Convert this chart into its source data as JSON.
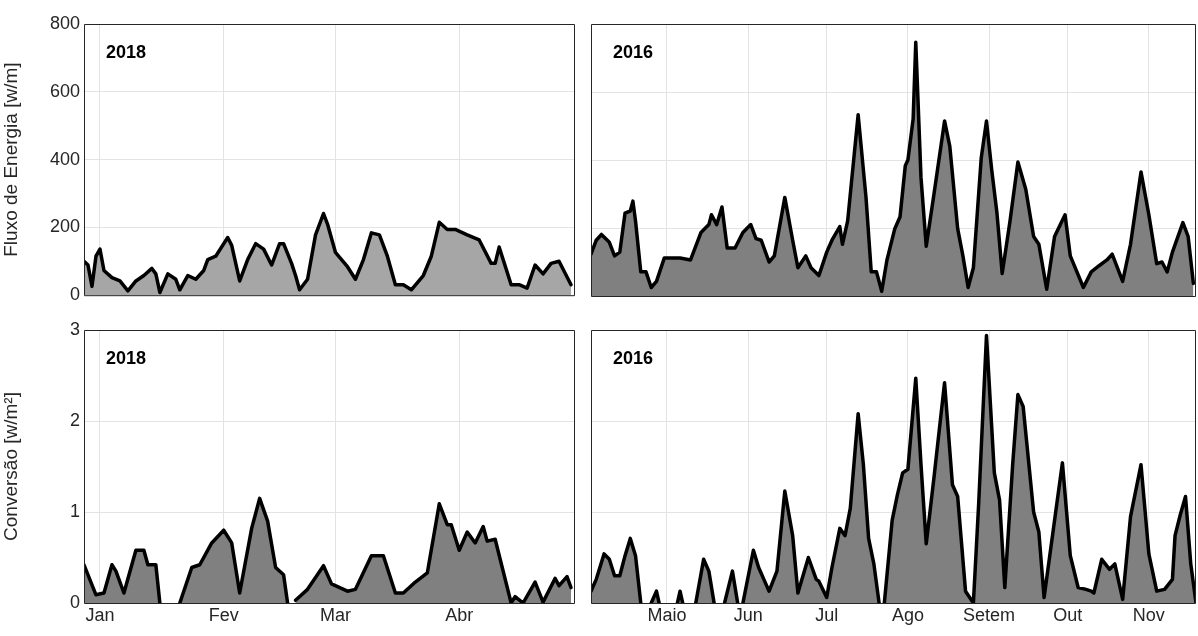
{
  "chart_data": [
    {
      "type": "area",
      "title": "2018",
      "ylabel": "Fluxo de Energia [w/m]",
      "grid": true,
      "tick_labels": "y",
      "xlim": [
        "2018-01-11",
        "2018-05-14"
      ],
      "xticks": [
        {
          "value": "2018-01-15",
          "label": null
        },
        {
          "value": "2018-02-15",
          "label": null
        },
        {
          "value": "2018-03-15",
          "label": null
        },
        {
          "value": "2018-04-15",
          "label": null
        }
      ],
      "ylim": [
        0,
        800
      ],
      "yticks": [
        0,
        200,
        400,
        600,
        800
      ],
      "series": [
        {
          "color": "#a6a6a6",
          "x": [
            "2018-01-11",
            "2018-01-12",
            "2018-01-13",
            "2018-01-14",
            "2018-01-15",
            "2018-01-16",
            "2018-01-18",
            "2018-01-20",
            "2018-01-22",
            "2018-01-24",
            "2018-01-26",
            "2018-01-28",
            "2018-01-29",
            "2018-01-30",
            "2018-02-01",
            "2018-02-03",
            "2018-02-04",
            "2018-02-06",
            "2018-02-08",
            "2018-02-10",
            "2018-02-11",
            "2018-02-13",
            "2018-02-16",
            "2018-02-17",
            "2018-02-19",
            "2018-02-21",
            "2018-02-23",
            "2018-02-25",
            "2018-02-27",
            "2018-03-01",
            "2018-03-02",
            "2018-03-04",
            "2018-03-05",
            "2018-03-06",
            "2018-03-08",
            "2018-03-10",
            "2018-03-12",
            "2018-03-13",
            "2018-03-15",
            "2018-03-18",
            "2018-03-20",
            "2018-03-22",
            "2018-03-24",
            "2018-03-26",
            "2018-03-28",
            "2018-03-30",
            "2018-04-01",
            "2018-04-03",
            "2018-04-06",
            "2018-04-08",
            "2018-04-10",
            "2018-04-12",
            "2018-04-14",
            "2018-04-17",
            "2018-04-20",
            "2018-04-23",
            "2018-04-24",
            "2018-04-25",
            "2018-04-28",
            "2018-04-30",
            "2018-05-02",
            "2018-05-04",
            "2018-05-06",
            "2018-05-08",
            "2018-05-10",
            "2018-05-13"
          ],
          "values": [
            100,
            89,
            26,
            115,
            136,
            73,
            52,
            42,
            13,
            42,
            58,
            79,
            63,
            8,
            63,
            47,
            16,
            58,
            47,
            73,
            105,
            115,
            170,
            147,
            42,
            105,
            152,
            136,
            89,
            152,
            152,
            94,
            58,
            16,
            47,
            178,
            241,
            210,
            126,
            84,
            47,
            105,
            184,
            178,
            115,
            31,
            31,
            16,
            58,
            115,
            215,
            194,
            194,
            178,
            163,
            94,
            94,
            142,
            31,
            31,
            21,
            89,
            63,
            94,
            100,
            31
          ]
        }
      ]
    },
    {
      "type": "area",
      "title": "2016",
      "grid": true,
      "tick_labels": false,
      "xlim": [
        "2016-04-16",
        "2016-12-03"
      ],
      "xticks": [
        {
          "value": "2016-05-15",
          "label": null
        },
        {
          "value": "2016-06-15",
          "label": null
        },
        {
          "value": "2016-07-15",
          "label": null
        },
        {
          "value": "2016-08-15",
          "label": null
        },
        {
          "value": "2016-09-15",
          "label": null
        },
        {
          "value": "2016-10-15",
          "label": null
        },
        {
          "value": "2016-11-15",
          "label": null
        }
      ],
      "ylim": [
        0,
        800
      ],
      "yticks": [
        0,
        200,
        400,
        600,
        800
      ],
      "series": [
        {
          "color": "#808080",
          "x": [
            "2016-04-16",
            "2016-04-18",
            "2016-04-20",
            "2016-04-23",
            "2016-04-25",
            "2016-04-27",
            "2016-04-29",
            "2016-05-01",
            "2016-05-02",
            "2016-05-03",
            "2016-05-05",
            "2016-05-07",
            "2016-05-09",
            "2016-05-11",
            "2016-05-14",
            "2016-05-17",
            "2016-05-20",
            "2016-05-24",
            "2016-05-28",
            "2016-05-31",
            "2016-06-01",
            "2016-06-03",
            "2016-06-05",
            "2016-06-07",
            "2016-06-10",
            "2016-06-13",
            "2016-06-16",
            "2016-06-18",
            "2016-06-20",
            "2016-06-23",
            "2016-06-25",
            "2016-06-29",
            "2016-07-02",
            "2016-07-04",
            "2016-07-07",
            "2016-07-09",
            "2016-07-12",
            "2016-07-15",
            "2016-07-17",
            "2016-07-20",
            "2016-07-21",
            "2016-07-23",
            "2016-07-27",
            "2016-07-30",
            "2016-08-01",
            "2016-08-03",
            "2016-08-05",
            "2016-08-07",
            "2016-08-10",
            "2016-08-12",
            "2016-08-14",
            "2016-08-15",
            "2016-08-17",
            "2016-08-18",
            "2016-08-20",
            "2016-08-22",
            "2016-08-25",
            "2016-08-29",
            "2016-08-31",
            "2016-09-03",
            "2016-09-05",
            "2016-09-07",
            "2016-09-09",
            "2016-09-12",
            "2016-09-14",
            "2016-09-16",
            "2016-09-18",
            "2016-09-20",
            "2016-09-23",
            "2016-09-26",
            "2016-09-29",
            "2016-10-02",
            "2016-10-04",
            "2016-10-07",
            "2016-10-10",
            "2016-10-14",
            "2016-10-16",
            "2016-10-21",
            "2016-10-24",
            "2016-10-27",
            "2016-10-30",
            "2016-11-01",
            "2016-11-05",
            "2016-11-08",
            "2016-11-12",
            "2016-11-15",
            "2016-11-18",
            "2016-11-20",
            "2016-11-22",
            "2016-11-24",
            "2016-11-28",
            "2016-11-30",
            "2016-12-02"
          ],
          "values": [
            123,
            164,
            181,
            158,
            118,
            129,
            244,
            250,
            279,
            221,
            71,
            71,
            25,
            43,
            112,
            112,
            112,
            106,
            187,
            210,
            239,
            210,
            262,
            141,
            141,
            187,
            210,
            169,
            164,
            100,
            118,
            290,
            164,
            83,
            118,
            83,
            60,
            129,
            164,
            204,
            152,
            221,
            533,
            290,
            71,
            71,
            14,
            106,
            198,
            233,
            383,
            400,
            521,
            746,
            348,
            146,
            302,
            515,
            440,
            198,
            118,
            25,
            83,
            406,
            515,
            371,
            244,
            66,
            221,
            394,
            314,
            175,
            152,
            20,
            175,
            239,
            118,
            25,
            71,
            89,
            106,
            123,
            43,
            152,
            365,
            239,
            95,
            100,
            71,
            129,
            216,
            175,
            37
          ]
        }
      ]
    },
    {
      "type": "area",
      "title": "2018",
      "ylabel": "Conversão [w/m²]",
      "grid": true,
      "xlim": [
        "2018-01-11",
        "2018-05-14"
      ],
      "xticks": [
        {
          "value": "2018-01-15",
          "label": "Jan"
        },
        {
          "value": "2018-02-15",
          "label": "Fev"
        },
        {
          "value": "2018-03-15",
          "label": "Mar"
        },
        {
          "value": "2018-04-15",
          "label": "Abr"
        }
      ],
      "ylim": [
        0,
        3
      ],
      "yticks": [
        0,
        1,
        2,
        3
      ],
      "series": [
        {
          "color": "#808080",
          "x": [
            "2018-01-11",
            "2018-01-14",
            "2018-01-16",
            "2018-01-18",
            "2018-01-19",
            "2018-01-21",
            "2018-01-24",
            "2018-01-26",
            "2018-01-27",
            "2018-01-29",
            "2018-01-30",
            "2018-02-01",
            "2018-02-04",
            "2018-02-07",
            "2018-02-09",
            "2018-02-12",
            "2018-02-15",
            "2018-02-17",
            "2018-02-19",
            "2018-02-22",
            "2018-02-24",
            "2018-02-26",
            "2018-02-28",
            "2018-03-02",
            "2018-03-03",
            "2018-03-04",
            "2018-03-05",
            "2018-03-08",
            "2018-03-12",
            "2018-03-14",
            "2018-03-18",
            "2018-03-20",
            "2018-03-24",
            "2018-03-27",
            "2018-03-30",
            "2018-04-01",
            "2018-04-04",
            "2018-04-07",
            "2018-04-10",
            "2018-04-12",
            "2018-04-13",
            "2018-04-15",
            "2018-04-17",
            "2018-04-19",
            "2018-04-21",
            "2018-04-22",
            "2018-04-24",
            "2018-04-28",
            "2018-04-29",
            "2018-05-01",
            "2018-05-04",
            "2018-05-06",
            "2018-05-09",
            "2018-05-10",
            "2018-05-12",
            "2018-05-13"
          ],
          "values": [
            0.42,
            0.09,
            0.11,
            0.42,
            0.35,
            0.11,
            0.58,
            0.58,
            0.42,
            0.42,
            0,
            null,
            0,
            0.39,
            0.42,
            0.66,
            0.8,
            0.66,
            0.11,
            0.82,
            1.15,
            0.9,
            0.39,
            0.31,
            0,
            null,
            0.03,
            0.15,
            0.41,
            0.21,
            0.13,
            0.15,
            0.52,
            0.52,
            0.11,
            0.11,
            0.23,
            0.33,
            1.09,
            0.86,
            0.86,
            0.58,
            0.78,
            0.66,
            0.84,
            0.68,
            0.7,
            0,
            0.07,
            0,
            0.23,
            0.01,
            0.27,
            0.19,
            0.29,
            0.17
          ]
        }
      ]
    },
    {
      "type": "area",
      "title": "2016",
      "grid": true,
      "tick_labels": "x",
      "xlim": [
        "2016-04-16",
        "2016-12-03"
      ],
      "xticks": [
        {
          "value": "2016-05-15",
          "label": "Maio"
        },
        {
          "value": "2016-06-15",
          "label": "Jun"
        },
        {
          "value": "2016-07-15",
          "label": "Jul"
        },
        {
          "value": "2016-08-15",
          "label": "Ago"
        },
        {
          "value": "2016-09-15",
          "label": "Setem"
        },
        {
          "value": "2016-10-15",
          "label": "Out"
        },
        {
          "value": "2016-11-15",
          "label": "Nov"
        }
      ],
      "ylim": [
        0,
        3
      ],
      "yticks": [
        0,
        1,
        2,
        3
      ],
      "series": [
        {
          "color": "#808080",
          "x": [
            "2016-04-16",
            "2016-04-18",
            "2016-04-21",
            "2016-04-23",
            "2016-04-25",
            "2016-04-27",
            "2016-04-29",
            "2016-05-01",
            "2016-05-03",
            "2016-05-05",
            "2016-05-07",
            "2016-05-09",
            "2016-05-11",
            "2016-05-12",
            "2016-05-15",
            "2016-05-19",
            "2016-05-20",
            "2016-05-21",
            "2016-05-23",
            "2016-05-26",
            "2016-05-29",
            "2016-05-31",
            "2016-06-02",
            "2016-06-04",
            "2016-06-06",
            "2016-06-09",
            "2016-06-11",
            "2016-06-12",
            "2016-06-13",
            "2016-06-17",
            "2016-06-19",
            "2016-06-21",
            "2016-06-23",
            "2016-06-26",
            "2016-06-29",
            "2016-07-02",
            "2016-07-04",
            "2016-07-08",
            "2016-07-11",
            "2016-07-12",
            "2016-07-15",
            "2016-07-17",
            "2016-07-20",
            "2016-07-22",
            "2016-07-24",
            "2016-07-27",
            "2016-07-29",
            "2016-07-31",
            "2016-08-02",
            "2016-08-04",
            "2016-08-05",
            "2016-08-06",
            "2016-08-09",
            "2016-08-11",
            "2016-08-13",
            "2016-08-15",
            "2016-08-18",
            "2016-08-20",
            "2016-08-22",
            "2016-08-25",
            "2016-08-26",
            "2016-08-29",
            "2016-09-01",
            "2016-09-03",
            "2016-09-06",
            "2016-09-09",
            "2016-09-11",
            "2016-09-14",
            "2016-09-17",
            "2016-09-19",
            "2016-09-21",
            "2016-09-24",
            "2016-09-26",
            "2016-09-28",
            "2016-10-02",
            "2016-10-04",
            "2016-10-06",
            "2016-10-10",
            "2016-10-13",
            "2016-10-16",
            "2016-10-19",
            "2016-10-22",
            "2016-10-24",
            "2016-10-25",
            "2016-10-28",
            "2016-10-31",
            "2016-11-02",
            "2016-11-05",
            "2016-11-08",
            "2016-11-12",
            "2016-11-15",
            "2016-11-18",
            "2016-11-21",
            "2016-11-24",
            "2016-11-25",
            "2016-11-27",
            "2016-11-29",
            "2016-12-01",
            "2016-12-03"
          ],
          "values": [
            0.13,
            0.26,
            0.54,
            0.48,
            0.3,
            0.3,
            0.52,
            0.71,
            0.52,
            0,
            null,
            0,
            0.13,
            0,
            null,
            0,
            0.13,
            0,
            null,
            0,
            0.48,
            0.35,
            0,
            null,
            0,
            0.35,
            0,
            null,
            0,
            0.58,
            0.39,
            0.26,
            0.13,
            0.35,
            1.23,
            0.74,
            0.11,
            0.5,
            0.26,
            0.24,
            0.06,
            0.39,
            0.82,
            0.74,
            1.04,
            2.08,
            1.52,
            0.71,
            0.43,
            0,
            null,
            0,
            0.91,
            1.19,
            1.43,
            1.47,
            2.47,
            1.52,
            0.65,
            1.39,
            1.65,
            2.42,
            1.3,
            1.17,
            0.13,
            0,
            1.08,
            2.94,
            1.43,
            1.13,
            0.17,
            1.52,
            2.29,
            2.16,
            1,
            0.78,
            0.06,
            0.91,
            1.54,
            0.52,
            0.17,
            0.15,
            0.13,
            0.11,
            0.48,
            0.37,
            0.43,
            0.04,
            0.95,
            1.52,
            0.54,
            0.13,
            0.15,
            0.26,
            0.74,
            0.97,
            1.17,
            0.43,
            0
          ]
        }
      ]
    }
  ]
}
